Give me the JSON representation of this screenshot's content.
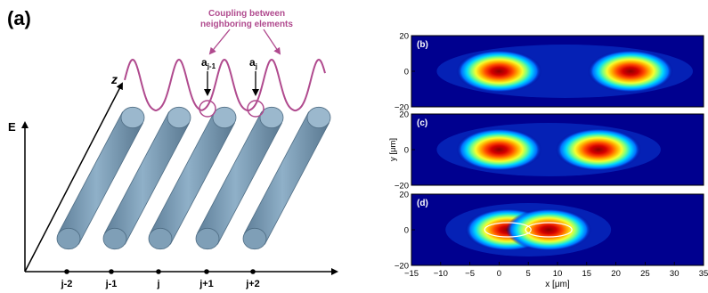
{
  "panel_a": {
    "label": "(a)",
    "coupling_line1": "Coupling between",
    "coupling_line2": "neighboring elements",
    "a_prev_base": "a",
    "a_prev_sub": "j-1",
    "a_curr_base": "a",
    "a_curr_sub": "j",
    "axis_z": "z",
    "axis_E": "E",
    "positions": [
      "j-2",
      "j-1",
      "j",
      "j+1",
      "j+2"
    ],
    "colors": {
      "waveguide": "#7f9fb7",
      "mode_curve": "#b04a8e",
      "axis": "#000000"
    }
  },
  "chart_data": [
    {
      "type": "heatmap",
      "panel_label": "(b)",
      "ylim": [
        -20,
        20
      ],
      "yticks": [
        "20",
        "0",
        "−20"
      ],
      "ylabel": "",
      "xlabel": "",
      "modes": [
        {
          "x": 0,
          "y": 0
        },
        {
          "x": 22.5,
          "y": 0
        }
      ]
    },
    {
      "type": "heatmap",
      "panel_label": "(c)",
      "ylim": [
        -20,
        20
      ],
      "yticks": [
        "20",
        "0",
        "−20"
      ],
      "ylabel": "y [μm]",
      "xlabel": "",
      "modes": [
        {
          "x": 0,
          "y": 0
        },
        {
          "x": 17,
          "y": 0
        }
      ]
    },
    {
      "type": "heatmap",
      "panel_label": "(d)",
      "ylim": [
        -20,
        20
      ],
      "yticks": [
        "20",
        "0",
        "−20"
      ],
      "xlim": [
        -15,
        35
      ],
      "xticks": [
        "−15",
        "−10",
        "−5",
        "0",
        "5",
        "10",
        "15",
        "20",
        "25",
        "30",
        "35"
      ],
      "xlabel": "x [μm]",
      "ylabel": "",
      "modes": [
        {
          "x": 1.5,
          "y": 0
        },
        {
          "x": 8.5,
          "y": 0
        }
      ]
    }
  ]
}
